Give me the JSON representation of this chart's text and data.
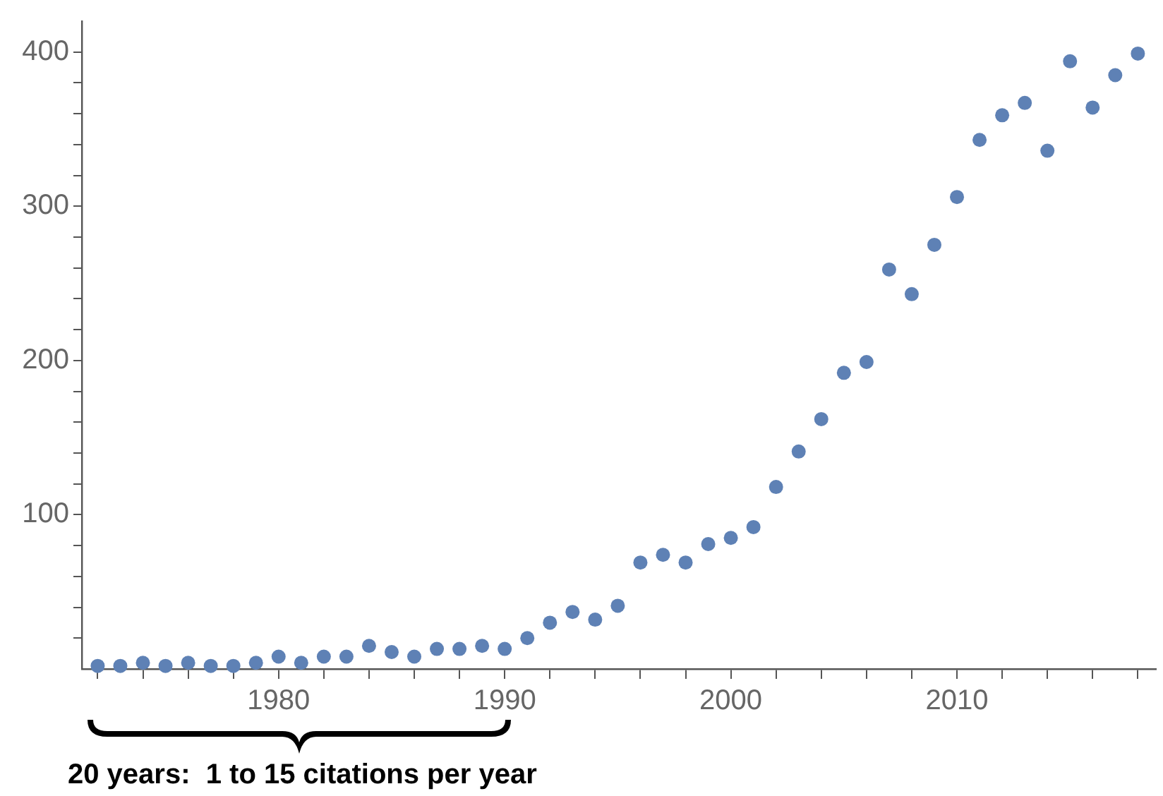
{
  "chart_data": {
    "type": "scatter",
    "color": "#5e81b5",
    "marker": "circle",
    "grid": false,
    "legend": false,
    "x": [
      1972,
      1973,
      1974,
      1975,
      1976,
      1977,
      1978,
      1979,
      1980,
      1981,
      1982,
      1983,
      1984,
      1985,
      1986,
      1987,
      1988,
      1989,
      1990,
      1991,
      1992,
      1993,
      1994,
      1995,
      1996,
      1997,
      1998,
      1999,
      2000,
      2001,
      2002,
      2003,
      2004,
      2005,
      2006,
      2007,
      2008,
      2009,
      2010,
      2011,
      2012,
      2013,
      2014,
      2015,
      2016,
      2017,
      2018
    ],
    "values": [
      2,
      2,
      4,
      2,
      4,
      2,
      2,
      4,
      8,
      4,
      8,
      8,
      15,
      11,
      8,
      13,
      13,
      15,
      13,
      20,
      30,
      37,
      32,
      41,
      69,
      74,
      69,
      81,
      85,
      92,
      118,
      141,
      162,
      192,
      199,
      259,
      243,
      275,
      306,
      343,
      359,
      367,
      336,
      394,
      364,
      385,
      399
    ],
    "xlim": [
      1971.3,
      2018.8
    ],
    "xticks": [
      {
        "value": 1972,
        "label": null
      },
      {
        "value": 1974,
        "label": null
      },
      {
        "value": 1976,
        "label": null
      },
      {
        "value": 1978,
        "label": null
      },
      1980,
      {
        "value": 1982,
        "label": null
      },
      {
        "value": 1984,
        "label": null
      },
      {
        "value": 1986,
        "label": null
      },
      {
        "value": 1988,
        "label": null
      },
      1990,
      {
        "value": 1992,
        "label": null
      },
      {
        "value": 1994,
        "label": null
      },
      {
        "value": 1996,
        "label": null
      },
      {
        "value": 1998,
        "label": null
      },
      2000,
      {
        "value": 2002,
        "label": null
      },
      {
        "value": 2004,
        "label": null
      },
      {
        "value": 2006,
        "label": null
      },
      {
        "value": 2008,
        "label": null
      },
      2010,
      {
        "value": 2012,
        "label": null
      },
      {
        "value": 2014,
        "label": null
      },
      {
        "value": 2016,
        "label": null
      },
      {
        "value": 2018,
        "label": null
      }
    ],
    "ylim": [
      0,
      420
    ],
    "yticks": [
      {
        "value": 20,
        "label": null
      },
      {
        "value": 40,
        "label": null
      },
      {
        "value": 60,
        "label": null
      },
      {
        "value": 80,
        "label": null
      },
      100,
      {
        "value": 120,
        "label": null
      },
      {
        "value": 140,
        "label": null
      },
      {
        "value": 160,
        "label": null
      },
      {
        "value": 180,
        "label": null
      },
      200,
      {
        "value": 220,
        "label": null
      },
      {
        "value": 240,
        "label": null
      },
      {
        "value": 260,
        "label": null
      },
      {
        "value": 280,
        "label": null
      },
      300,
      {
        "value": 320,
        "label": null
      },
      {
        "value": 340,
        "label": null
      },
      {
        "value": 360,
        "label": null
      },
      {
        "value": 380,
        "label": null
      },
      400
    ],
    "annotations": [
      "20 years:  1 to 15 citations per year"
    ]
  }
}
